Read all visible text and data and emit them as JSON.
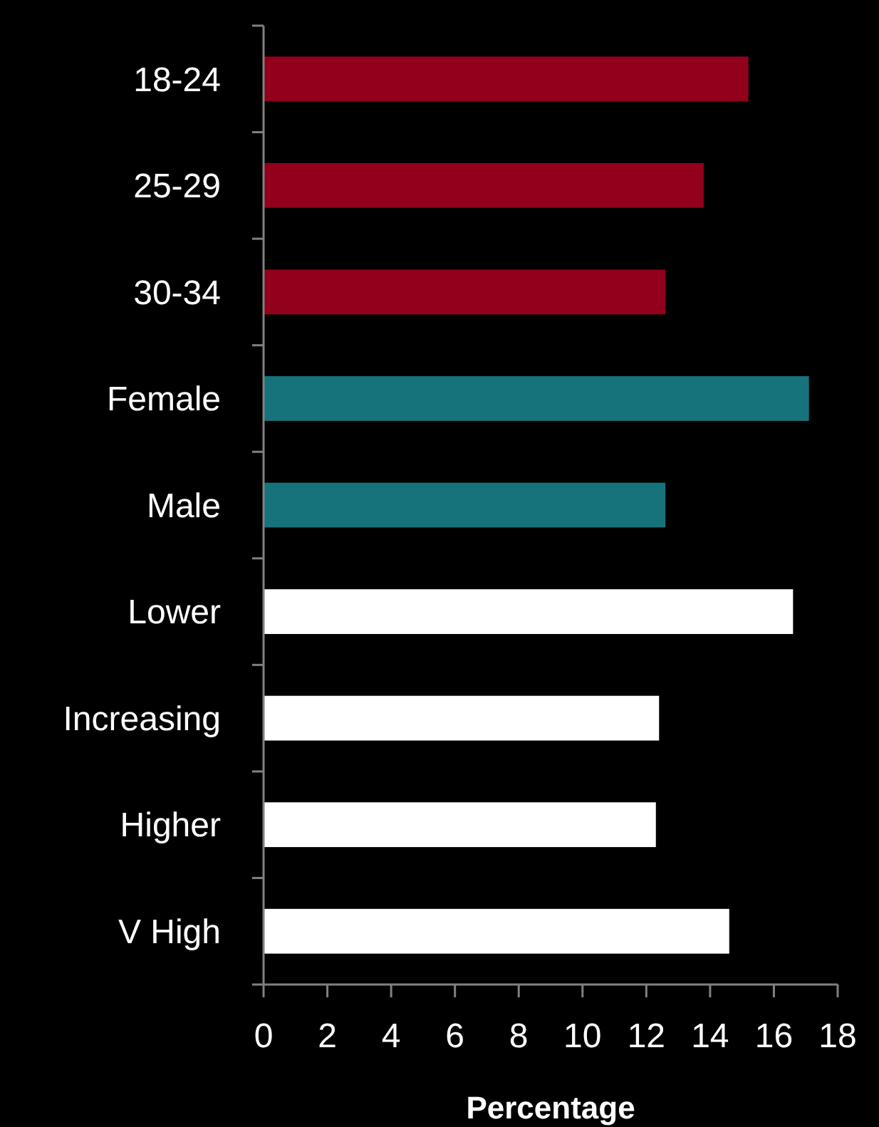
{
  "chart_data": {
    "type": "bar",
    "orientation": "horizontal",
    "xlabel": "Percentage",
    "categories": [
      "18-24",
      "25-29",
      "30-34",
      "Female",
      "Male",
      "Lower",
      "Increasing",
      "Higher",
      "V High"
    ],
    "values": [
      15.2,
      13.8,
      12.6,
      17.1,
      12.6,
      16.6,
      12.4,
      12.3,
      14.6
    ],
    "colors": [
      "#92001c",
      "#92001c",
      "#92001c",
      "#17737b",
      "#17737b",
      "#ffffff",
      "#ffffff",
      "#ffffff",
      "#ffffff"
    ],
    "xlim": [
      0,
      18
    ],
    "xticks": [
      0,
      2,
      4,
      6,
      8,
      10,
      12,
      14,
      16,
      18
    ],
    "grid": false
  }
}
